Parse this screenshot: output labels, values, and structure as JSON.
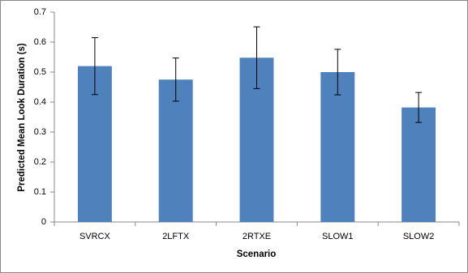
{
  "chart_data": {
    "type": "bar",
    "y_label": "Predicted Mean Look Duration (s)",
    "x_label": "Scenario",
    "categories": [
      "SVRCX",
      "2LFTX",
      "2RTXE",
      "SLOW1",
      "SLOW2"
    ],
    "values": [
      0.52,
      0.475,
      0.548,
      0.5,
      0.382
    ],
    "errors": [
      0.095,
      0.072,
      0.103,
      0.076,
      0.05
    ],
    "color": "#4f81bd",
    "ylim": [
      0,
      0.7
    ],
    "yticks": [
      0,
      0.1,
      0.2,
      0.3,
      0.4,
      0.5,
      0.6,
      0.7
    ],
    "grid": false
  }
}
